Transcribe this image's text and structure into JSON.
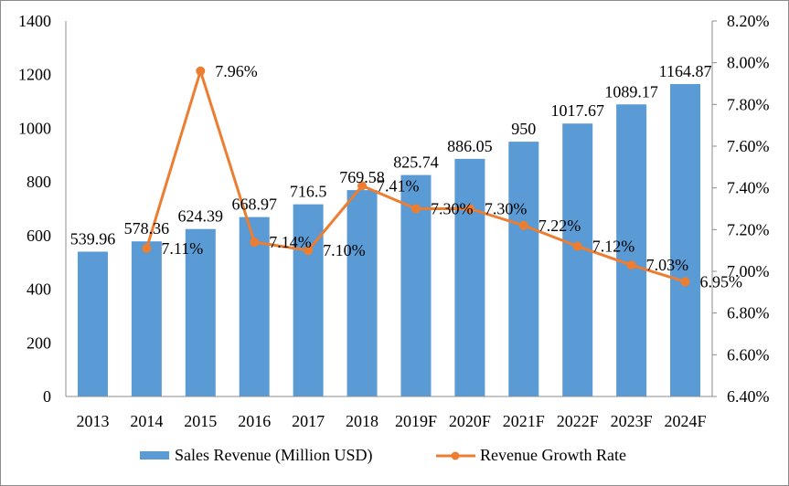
{
  "chart_data": {
    "type": "bar",
    "title": "",
    "xlabel": "",
    "ylabel": "",
    "categories": [
      "2013",
      "2014",
      "2015",
      "2016",
      "2017",
      "2018",
      "2019F",
      "2020F",
      "2021F",
      "2022F",
      "2023F",
      "2024F"
    ],
    "series": [
      {
        "name": "Sales Revenue (Million USD)",
        "type": "bar",
        "axis": "left",
        "color": "#5b9bd5",
        "values": [
          539.96,
          578.36,
          624.39,
          668.97,
          716.5,
          769.58,
          825.74,
          886.05,
          950,
          1017.67,
          1089.17,
          1164.87
        ],
        "labels": [
          "539.96",
          "578.36",
          "624.39",
          "668.97",
          "716.5",
          "769.58",
          "825.74",
          "886.05",
          "950",
          "1017.67",
          "1089.17",
          "1164.87"
        ]
      },
      {
        "name": "Revenue Growth Rate",
        "type": "line",
        "axis": "right",
        "color": "#ed7d31",
        "values": [
          null,
          7.11,
          7.96,
          7.14,
          7.1,
          7.41,
          7.3,
          7.3,
          7.22,
          7.12,
          7.03,
          6.95
        ],
        "labels": [
          "",
          "7.11%",
          "7.96%",
          "7.14%",
          "7.10%",
          "7.41%",
          "7.30%",
          "7.30%",
          "7.22%",
          "7.12%",
          "7.03%",
          "6.95%"
        ]
      }
    ],
    "ylim": [
      0,
      1400
    ],
    "yticks": [
      "0",
      "200",
      "400",
      "600",
      "800",
      "1000",
      "1200",
      "1400"
    ],
    "y2lim": [
      6.4,
      8.2
    ],
    "y2ticks": [
      "6.40%",
      "6.60%",
      "6.80%",
      "7.00%",
      "7.20%",
      "7.40%",
      "7.60%",
      "7.80%",
      "8.00%",
      "8.20%"
    ],
    "grid": false,
    "legend": "bottom"
  }
}
